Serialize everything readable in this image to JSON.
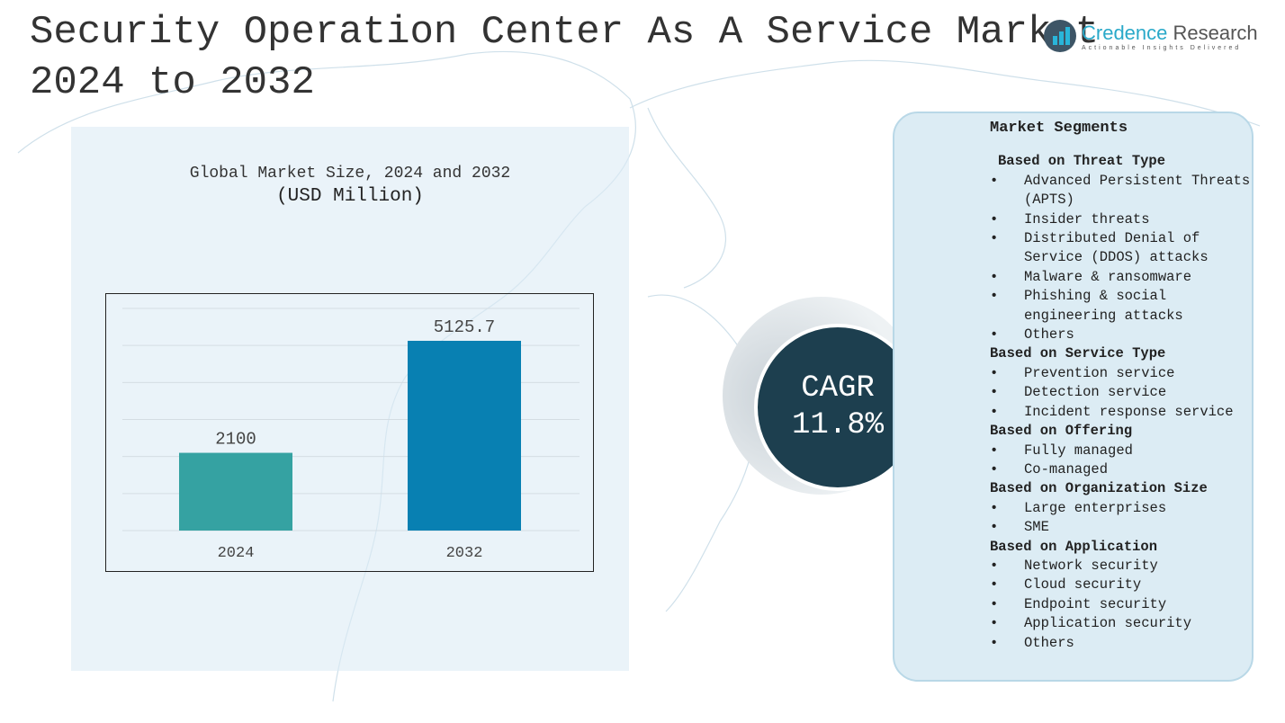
{
  "title_line1": "Security Operation Center As A Service Market",
  "title_line2": "2024 to 2032",
  "logo": {
    "name_a": "Credence",
    "name_b": " Research",
    "tagline": "Actionable Insights Delivered"
  },
  "chart_heading": "Global Market Size, 2024 and 2032",
  "chart_unit": "(USD Million)",
  "chart_data": {
    "type": "bar",
    "categories": [
      "2024",
      "2032"
    ],
    "values": [
      2100,
      5125.7
    ],
    "value_labels": [
      "2100",
      "5125.7"
    ],
    "colors": [
      "#35a2a2",
      "#0880b2"
    ],
    "ylim": [
      0,
      6000
    ],
    "grid": true,
    "title": "Global Market Size, 2024 and 2032",
    "ylabel": "(USD Million)"
  },
  "cagr": {
    "label": "CAGR",
    "value": "11.8%"
  },
  "segments": {
    "title": "Market Segments",
    "groups": [
      {
        "heading": "Based on Threat Type",
        "items": [
          "Advanced Persistent Threats (APTS)",
          "Insider threats",
          "Distributed Denial of Service (DDOS) attacks",
          "Malware & ransomware",
          "Phishing & social engineering attacks",
          "Others"
        ]
      },
      {
        "heading": "Based on Service Type",
        "items": [
          "Prevention service",
          "Detection service",
          "Incident response service"
        ]
      },
      {
        "heading": "Based on Offering",
        "items": [
          "Fully managed",
          "Co-managed"
        ]
      },
      {
        "heading": "Based on Organization Size",
        "items": [
          "Large enterprises",
          "SME"
        ]
      },
      {
        "heading": "Based on Application",
        "items": [
          "Network security",
          "Cloud security",
          "Endpoint security",
          "Application security",
          "Others"
        ]
      }
    ]
  }
}
